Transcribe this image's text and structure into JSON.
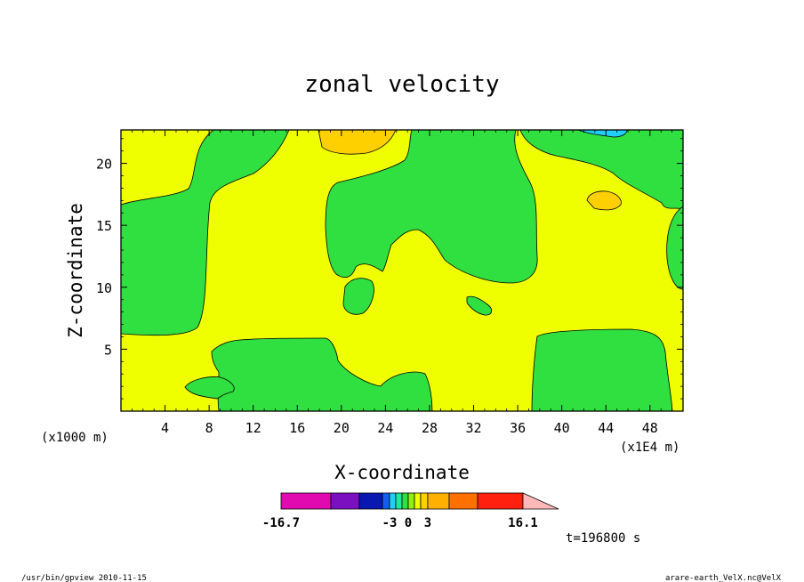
{
  "chart_data": {
    "type": "heatmap",
    "title": "zonal velocity",
    "xlabel": "X-coordinate",
    "ylabel": "Z-coordinate",
    "x_unit_label": "(x1E4 m)",
    "y_unit_label": "(x1000 m)",
    "x_ticks": [
      4,
      8,
      12,
      16,
      20,
      24,
      28,
      32,
      36,
      40,
      44,
      48
    ],
    "y_ticks": [
      5,
      10,
      15,
      20
    ],
    "xlim": [
      0,
      51
    ],
    "ylim": [
      0,
      22.7
    ],
    "colorbar": {
      "tick_labels": [
        {
          "text": "-16.7",
          "value": -16.7
        },
        {
          "text": "-3",
          "value": -3
        },
        {
          "text": "0",
          "value": 0
        },
        {
          "text": "3",
          "value": 3
        },
        {
          "text": "16.1",
          "value": 16.1
        }
      ],
      "levels": [
        -16.7,
        -10.9,
        -6.5,
        -4.5,
        -3,
        -2,
        -1,
        0,
        1,
        2,
        3,
        4.5,
        6.5,
        10.9,
        16.1
      ],
      "colors": [
        "#e00ab0",
        "#7a10c0",
        "#0818b0",
        "#1060f0",
        "#20d0f8",
        "#20e8a0",
        "#30e040",
        "#90f010",
        "#f0ff00",
        "#ffd000",
        "#ffb000",
        "#ff7000",
        "#ff2010",
        "#ff7870"
      ],
      "extend_color": "#ffb8b8"
    },
    "time_label": "t=196800 s"
  },
  "footer": {
    "left": "/usr/bin/gpview  2010-11-15",
    "right": "arare-earth_VelX.nc@VelX"
  },
  "colors": {
    "yellow_fill": "#f0ff00",
    "green_fill": "#30e040",
    "orange_fill": "#ffd000",
    "blue_fill": "#20d0f8"
  }
}
